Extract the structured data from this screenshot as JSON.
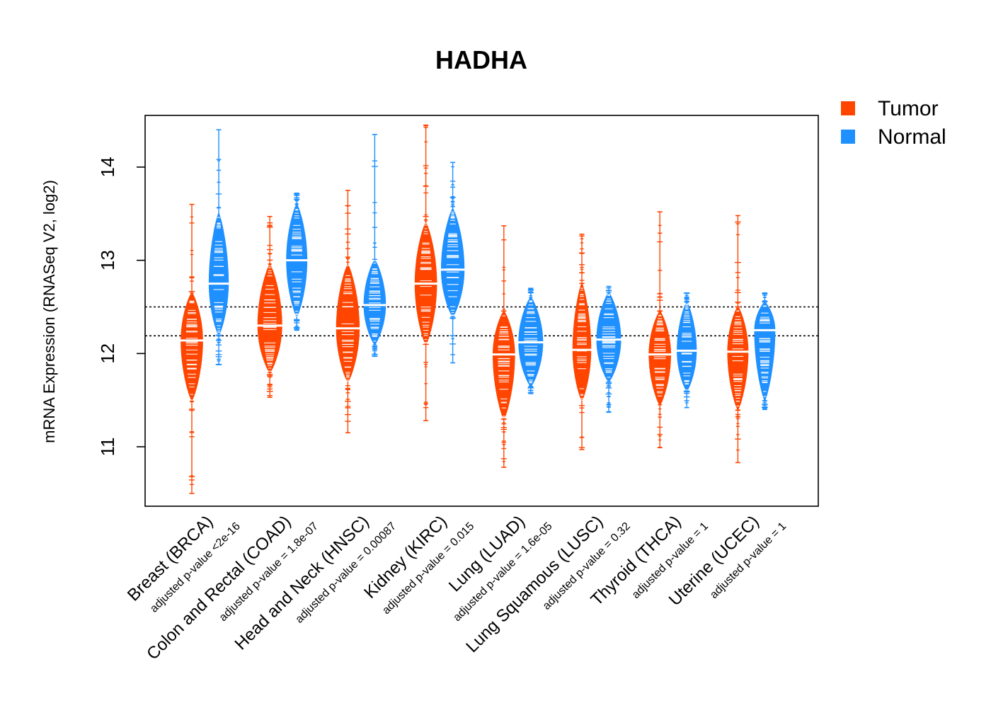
{
  "chart_data": {
    "type": "violin",
    "title": "HADHA",
    "ylabel": "mRNA Expression (RNASeq V2, log2)",
    "xlabel": "",
    "ylim": [
      10.4,
      14.6
    ],
    "yticks": [
      11,
      12,
      13,
      14
    ],
    "grid": false,
    "legend": {
      "position": "top-right",
      "entries": [
        {
          "name": "Tumor",
          "color": "#FF4500"
        },
        {
          "name": "Normal",
          "color": "#1E90FF"
        }
      ]
    },
    "reference_lines": [
      12.19,
      12.5
    ],
    "colors": {
      "tumor": "#FF4500",
      "normal": "#1E90FF"
    },
    "categories": [
      {
        "label": "Breast (BRCA)",
        "pvalue": "adjusted p-value <2e-16",
        "tumor": {
          "median": 12.14,
          "range": [
            10.5,
            13.6
          ],
          "core": [
            11.5,
            12.65
          ],
          "width": 0.9
        },
        "normal": {
          "median": 12.75,
          "range": [
            11.88,
            14.4
          ],
          "core": [
            12.2,
            13.5
          ],
          "width": 0.8
        }
      },
      {
        "label": "Colon and Rectal (COAD)",
        "pvalue": "adjusted p-value = 1.8e-07",
        "tumor": {
          "median": 12.3,
          "range": [
            11.53,
            13.47
          ],
          "core": [
            11.8,
            12.95
          ],
          "width": 1.0
        },
        "normal": {
          "median": 13.0,
          "range": [
            12.25,
            13.72
          ],
          "core": [
            12.4,
            13.6
          ],
          "width": 0.85
        }
      },
      {
        "label": "Head and Neck (HNSC)",
        "pvalue": "adjusted p-value = 0.00087",
        "tumor": {
          "median": 12.27,
          "range": [
            11.15,
            13.75
          ],
          "core": [
            11.7,
            12.95
          ],
          "width": 0.95
        },
        "normal": {
          "median": 12.52,
          "range": [
            11.97,
            14.35
          ],
          "core": [
            12.1,
            13.0
          ],
          "width": 0.9
        }
      },
      {
        "label": "Kidney (KIRC)",
        "pvalue": "adjusted p-value = 0.015",
        "tumor": {
          "median": 12.75,
          "range": [
            11.28,
            14.45
          ],
          "core": [
            12.1,
            13.4
          ],
          "width": 0.9
        },
        "normal": {
          "median": 12.9,
          "range": [
            11.9,
            14.05
          ],
          "core": [
            12.4,
            13.55
          ],
          "width": 0.95
        }
      },
      {
        "label": "Lung (LUAD)",
        "pvalue": "adjusted p-value = 1.6e-05",
        "tumor": {
          "median": 11.99,
          "range": [
            10.78,
            13.37
          ],
          "core": [
            11.3,
            12.45
          ],
          "width": 0.9
        },
        "normal": {
          "median": 12.12,
          "range": [
            11.57,
            12.7
          ],
          "core": [
            11.65,
            12.6
          ],
          "width": 1.0
        }
      },
      {
        "label": "Lung Squamous (LUSC)",
        "pvalue": "adjusted p-value = 0.32",
        "tumor": {
          "median": 12.04,
          "range": [
            10.97,
            13.28
          ],
          "core": [
            11.5,
            12.75
          ],
          "width": 0.75
        },
        "normal": {
          "median": 12.15,
          "range": [
            11.37,
            12.72
          ],
          "core": [
            11.7,
            12.65
          ],
          "width": 1.0
        }
      },
      {
        "label": "Thyroid (THCA)",
        "pvalue": "adjusted p-value = 1",
        "tumor": {
          "median": 11.99,
          "range": [
            10.99,
            13.52
          ],
          "core": [
            11.45,
            12.45
          ],
          "width": 0.9
        },
        "normal": {
          "median": 12.03,
          "range": [
            11.42,
            12.65
          ],
          "core": [
            11.6,
            12.55
          ],
          "width": 0.8
        }
      },
      {
        "label": "Uterine (UCEC)",
        "pvalue": "adjusted p-value = 1",
        "tumor": {
          "median": 12.02,
          "range": [
            10.83,
            13.48
          ],
          "core": [
            11.4,
            12.5
          ],
          "width": 0.85
        },
        "normal": {
          "median": 12.25,
          "range": [
            11.4,
            12.65
          ],
          "core": [
            11.5,
            12.55
          ],
          "width": 0.85
        }
      }
    ]
  }
}
